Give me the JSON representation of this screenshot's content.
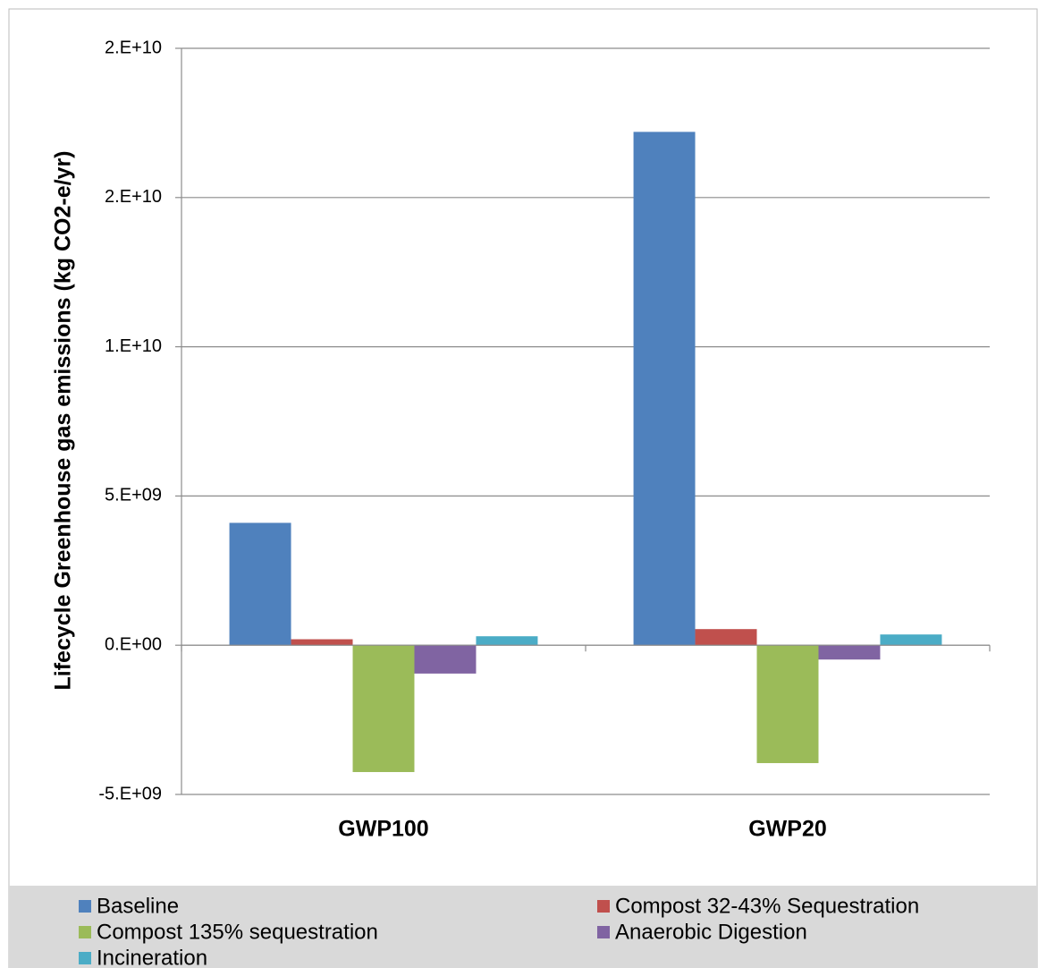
{
  "chart_data": {
    "type": "bar",
    "y_label": "Lifecycle Greenhouse gas emissions (kg CO2-e/yr)",
    "categories": [
      "GWP100",
      "GWP20"
    ],
    "series": [
      {
        "name": "Baseline",
        "color": "#4f81bd",
        "values": [
          4100000000,
          17200000000
        ]
      },
      {
        "name": "Compost 32-43% Sequestration",
        "color": "#c0504d",
        "values": [
          200000000,
          540000000
        ]
      },
      {
        "name": "Compost 135% sequestration",
        "color": "#9bbb59",
        "values": [
          -4250000000,
          -3950000000
        ]
      },
      {
        "name": "Anaerobic Digestion",
        "color": "#8064a2",
        "values": [
          -950000000,
          -480000000
        ]
      },
      {
        "name": "Incineration",
        "color": "#4bacc6",
        "values": [
          300000000,
          360000000
        ]
      }
    ],
    "ylim": [
      -5000000000,
      20000000000
    ],
    "yticks": [
      {
        "value": -5000000000,
        "label": "-5.E+09"
      },
      {
        "value": 0,
        "label": "0.E+00"
      },
      {
        "value": 5000000000,
        "label": "5.E+09"
      },
      {
        "value": 10000000000,
        "label": "1.E+10"
      },
      {
        "value": 15000000000,
        "label": "2.E+10"
      },
      {
        "value": 20000000000,
        "label": "2.E+10"
      }
    ],
    "grid": true
  }
}
